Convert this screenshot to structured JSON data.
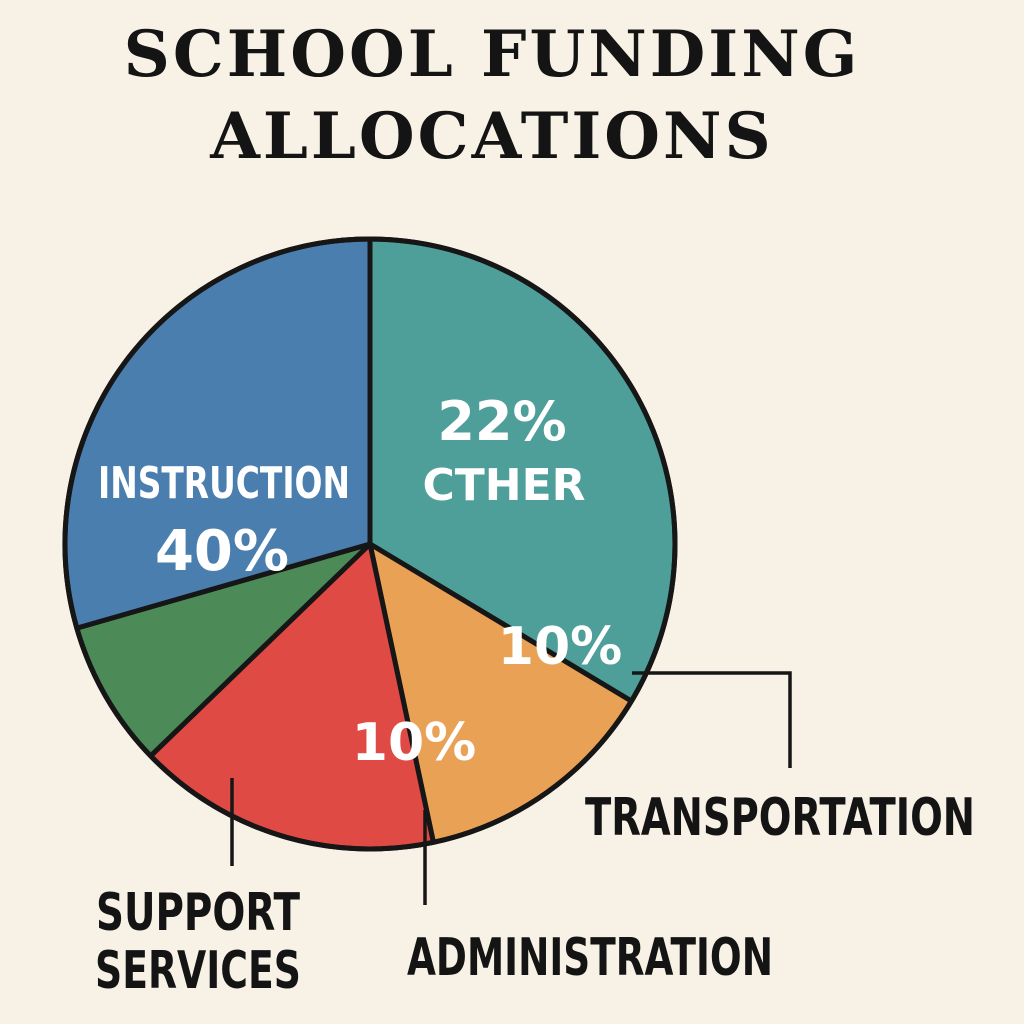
{
  "chart_data": {
    "type": "pie",
    "title_lines": [
      "SCHOOL FUNDING",
      "ALLOCATIONS"
    ],
    "slices": [
      {
        "label": "CTHER",
        "value": 22,
        "value_label": "22%",
        "color": "#4e9e99"
      },
      {
        "label": "TRANSPORTATION",
        "value": 10,
        "value_label": "10%",
        "color": "#e8a155"
      },
      {
        "label": "ADMINISTRATION",
        "value": 10,
        "value_label": "10%",
        "color": "#e04a45"
      },
      {
        "label": "SUPPORT SERVICES",
        "label_lines": [
          "SUPPORT",
          "SERVICES"
        ],
        "value": null,
        "color": "#4c8a58"
      },
      {
        "label": "INSTRUCTION",
        "value": 40,
        "value_label": "40%",
        "color": "#4a7eae"
      }
    ]
  }
}
